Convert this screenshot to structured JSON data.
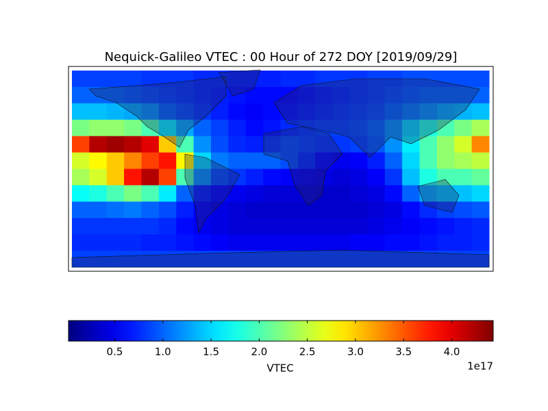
{
  "chart_data": {
    "type": "heatmap",
    "title": "Nequick-Galileo VTEC : 00 Hour of 272 DOY [2019/09/29]",
    "colormap": "jet",
    "colorbar_label": "VTEC",
    "colorbar_offset": "1e17",
    "clim": [
      0.02,
      4.43
    ],
    "cticks": [
      0.5,
      {
        "value": 1.0,
        "label": "1.0"
      },
      1.5,
      {
        "value": 2.0,
        "label": "2.0"
      },
      2.5,
      {
        "value": 3.0,
        "label": "3.0"
      },
      3.5,
      {
        "value": 4.0,
        "label": "4.0"
      }
    ],
    "values": [
      [
        0.85,
        0.85,
        0.85,
        0.85,
        0.8,
        0.8,
        0.8,
        0.75,
        0.75,
        0.7,
        0.7,
        0.7,
        0.75,
        0.75,
        0.8,
        0.8,
        0.8,
        0.85,
        0.85,
        0.9,
        0.9,
        0.9,
        0.9,
        0.9
      ],
      [
        1.0,
        1.0,
        1.0,
        0.95,
        0.9,
        0.85,
        0.8,
        0.75,
        0.7,
        0.65,
        0.6,
        0.6,
        0.6,
        0.65,
        0.7,
        0.75,
        0.8,
        0.85,
        0.9,
        0.95,
        1.0,
        1.0,
        1.0,
        1.0
      ],
      [
        1.4,
        1.4,
        1.35,
        1.3,
        1.2,
        1.0,
        0.9,
        0.8,
        0.7,
        0.6,
        0.55,
        0.6,
        0.65,
        0.7,
        0.75,
        0.8,
        0.85,
        0.9,
        1.0,
        1.1,
        1.2,
        1.3,
        1.35,
        1.4
      ],
      [
        2.2,
        2.3,
        2.3,
        2.2,
        2.0,
        1.6,
        1.3,
        1.0,
        0.85,
        0.7,
        0.6,
        0.65,
        0.75,
        0.8,
        0.85,
        0.85,
        0.9,
        1.0,
        1.2,
        1.5,
        1.8,
        2.0,
        2.2,
        2.4
      ],
      [
        3.6,
        4.2,
        4.3,
        4.2,
        4.0,
        3.0,
        2.0,
        1.2,
        0.9,
        0.75,
        0.7,
        0.8,
        0.9,
        0.85,
        0.8,
        0.8,
        0.85,
        0.95,
        1.2,
        1.6,
        2.0,
        2.3,
        2.6,
        3.3
      ],
      [
        2.6,
        2.8,
        3.0,
        3.3,
        3.6,
        3.8,
        2.8,
        1.5,
        1.1,
        1.0,
        1.0,
        1.0,
        0.9,
        0.75,
        0.6,
        0.5,
        0.55,
        0.7,
        1.0,
        1.5,
        2.0,
        2.3,
        2.4,
        2.5
      ],
      [
        2.4,
        2.6,
        3.0,
        3.8,
        4.2,
        3.6,
        2.0,
        1.2,
        0.9,
        0.8,
        0.7,
        0.6,
        0.55,
        0.5,
        0.45,
        0.4,
        0.45,
        0.55,
        0.8,
        1.4,
        1.8,
        2.0,
        2.0,
        2.1
      ],
      [
        1.7,
        1.8,
        2.0,
        2.2,
        2.0,
        1.6,
        1.0,
        0.7,
        0.6,
        0.5,
        0.45,
        0.4,
        0.4,
        0.4,
        0.35,
        0.35,
        0.4,
        0.45,
        0.6,
        1.0,
        1.3,
        1.4,
        1.4,
        1.5
      ],
      [
        1.0,
        1.0,
        1.05,
        1.1,
        1.0,
        0.9,
        0.7,
        0.55,
        0.45,
        0.4,
        0.35,
        0.35,
        0.35,
        0.35,
        0.35,
        0.35,
        0.35,
        0.4,
        0.45,
        0.6,
        0.75,
        0.85,
        0.9,
        0.95
      ],
      [
        0.8,
        0.8,
        0.8,
        0.8,
        0.8,
        0.75,
        0.6,
        0.5,
        0.45,
        0.4,
        0.4,
        0.4,
        0.4,
        0.4,
        0.4,
        0.4,
        0.4,
        0.45,
        0.5,
        0.55,
        0.6,
        0.65,
        0.7,
        0.75
      ],
      [
        0.75,
        0.75,
        0.75,
        0.75,
        0.7,
        0.7,
        0.65,
        0.6,
        0.55,
        0.5,
        0.5,
        0.5,
        0.5,
        0.5,
        0.5,
        0.5,
        0.55,
        0.55,
        0.6,
        0.6,
        0.65,
        0.7,
        0.7,
        0.75
      ],
      [
        0.85,
        0.85,
        0.85,
        0.85,
        0.85,
        0.85,
        0.85,
        0.85,
        0.85,
        0.85,
        0.85,
        0.85,
        0.85,
        0.85,
        0.85,
        0.85,
        0.85,
        0.85,
        0.85,
        0.85,
        0.85,
        0.85,
        0.85,
        0.85
      ]
    ]
  }
}
